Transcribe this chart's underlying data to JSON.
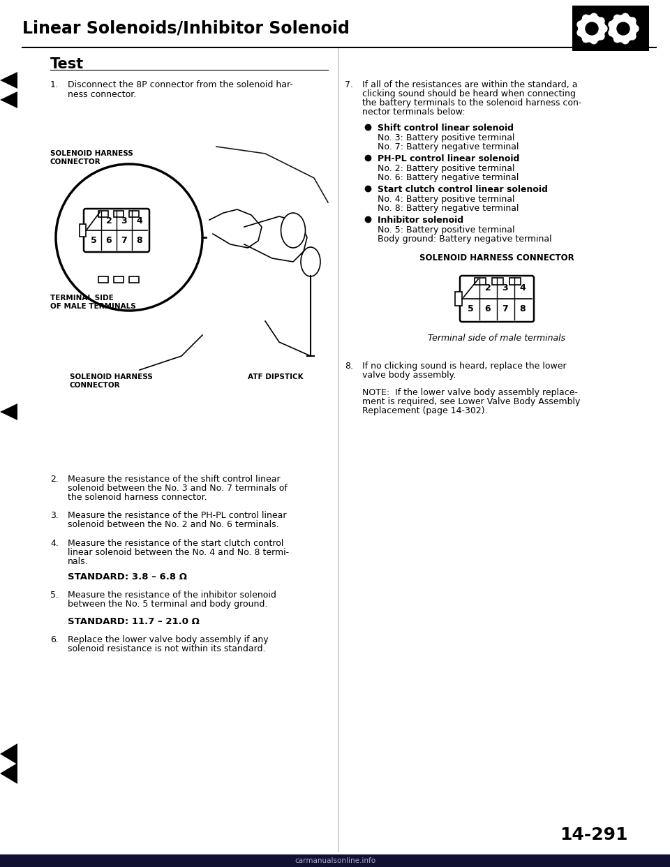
{
  "title": "Linear Solenoids/Inhibitor Solenoid",
  "section": "Test",
  "bg_color": "#ffffff",
  "text_color": "#000000",
  "step1": "Disconnect the 8P connector from the solenoid har-\nness connector.",
  "step2": "Measure the resistance of the shift control linear\nsolenoid between the No. 3 and No. 7 terminals of\nthe solenoid harness connector.",
  "step3": "Measure the resistance of the PH-PL control linear\nsolenoid between the No. 2 and No. 6 terminals.",
  "step4": "Measure the resistance of the start clutch control\nlinear solenoid between the No. 4 and No. 8 termi-\nnals.",
  "standard1": "STANDARD: 3.8 – 6.8 Ω",
  "step5": "Measure the resistance of the inhibitor solenoid\nbetween the No. 5 terminal and body ground.",
  "standard2": "STANDARD: 11.7 – 21.0 Ω",
  "step6": "Replace the lower valve body assembly if any\nsolenoid resistance is not within its standard.",
  "step7_line1": "If all of the resistances are within the standard, a",
  "step7_line2": "clicking sound should be heard when connecting",
  "step7_line3": "the battery terminals to the solenoid harness con-",
  "step7_line4": "nector terminals below:",
  "bullet1_bold": "Shift control linear solenoid",
  "bullet1_line1": "No. 3: Battery positive terminal",
  "bullet1_line2": "No. 7: Battery negative terminal",
  "bullet2_bold": "PH-PL control linear solenoid",
  "bullet2_line1": "No. 2: Battery positive terminal",
  "bullet2_line2": "No. 6: Battery negative terminal",
  "bullet3_bold": "Start clutch control linear solenoid",
  "bullet3_line1": "No. 4: Battery positive terminal",
  "bullet3_line2": "No. 8: Battery negative terminal",
  "bullet4_bold": "Inhibitor solenoid",
  "bullet4_line1": "No. 5: Battery positive terminal",
  "bullet4_line2": "Body ground: Battery negative terminal",
  "connector_label_top": "SOLENOID HARNESS\nCONNECTOR",
  "terminal_label": "TERMINAL SIDE\nOF MALE TERMINALS",
  "connector_label_bottom": "SOLENOID HARNESS\nCONNECTOR",
  "atf_label": "ATF DIPSTICK",
  "connector_label3": "SOLENOID HARNESS CONNECTOR",
  "terminal_note": "Terminal side of male terminals",
  "step8_line1": "If no clicking sound is heard, replace the lower",
  "step8_line2": "valve body assembly.",
  "note_line1": "NOTE:  If the lower valve body assembly replace-",
  "note_line2": "ment is required, see Lower Valve Body Assembly",
  "note_line3": "Replacement (page 14-302).",
  "page_num": "14-291",
  "watermark": "carmanualsonline.info",
  "connector_nums_top": [
    "2",
    "3",
    "4"
  ],
  "connector_nums_bot": [
    "5",
    "6",
    "7",
    "8"
  ]
}
